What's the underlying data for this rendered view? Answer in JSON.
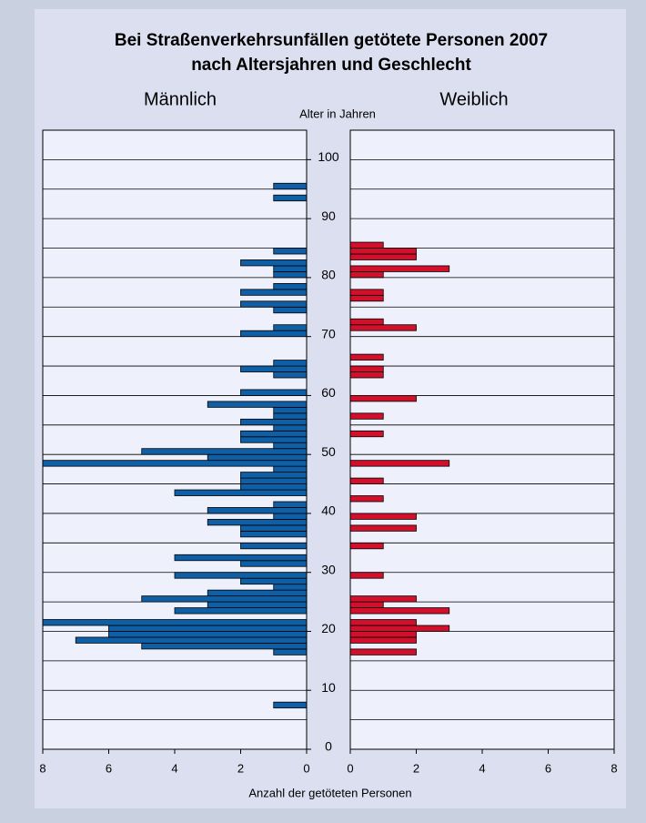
{
  "chart_data": {
    "type": "pyramid",
    "title": [
      "Bei Straßenverkehrsunfällen getötete Personen 2007",
      "nach Altersjahren und Geschlecht"
    ],
    "y_label": "Alter in Jahren",
    "x_label": "Anzahl der getöteten Personen",
    "x": [
      0,
      1,
      2,
      3,
      4,
      5,
      6,
      7,
      8,
      9,
      10,
      11,
      12,
      13,
      14,
      15,
      16,
      17,
      18,
      19,
      20,
      21,
      22,
      23,
      24,
      25,
      26,
      27,
      28,
      29,
      30,
      31,
      32,
      33,
      34,
      35,
      36,
      37,
      38,
      39,
      40,
      41,
      42,
      43,
      44,
      45,
      46,
      47,
      48,
      49,
      50,
      51,
      52,
      53,
      54,
      55,
      56,
      57,
      58,
      59,
      60,
      61,
      62,
      63,
      64,
      65,
      66,
      67,
      68,
      69,
      70,
      71,
      72,
      73,
      74,
      75,
      76,
      77,
      78,
      79,
      80,
      81,
      82,
      83,
      84,
      85,
      86,
      87,
      88,
      89,
      90,
      91,
      92,
      93,
      94,
      95,
      96,
      97,
      98,
      99,
      100,
      101,
      102,
      103,
      104
    ],
    "series": [
      {
        "name": "Männlich",
        "color": "#0f5fa6",
        "side": "left",
        "values": [
          0,
          0,
          0,
          0,
          0,
          0,
          0,
          1,
          0,
          0,
          0,
          0,
          0,
          0,
          0,
          0,
          1,
          5,
          7,
          6,
          6,
          8,
          0,
          4,
          3,
          5,
          3,
          1,
          2,
          4,
          0,
          2,
          4,
          0,
          2,
          0,
          2,
          2,
          3,
          1,
          3,
          1,
          0,
          4,
          2,
          2,
          2,
          1,
          8,
          3,
          5,
          1,
          2,
          2,
          1,
          2,
          1,
          1,
          3,
          0,
          2,
          0,
          0,
          1,
          2,
          1,
          0,
          0,
          0,
          0,
          2,
          1,
          0,
          0,
          1,
          2,
          0,
          2,
          1,
          0,
          1,
          1,
          2,
          0,
          1,
          0,
          0,
          0,
          0,
          0,
          0,
          0,
          0,
          1,
          0,
          1,
          0,
          0,
          0,
          0,
          0,
          0,
          0,
          0,
          0
        ]
      },
      {
        "name": "Weiblich",
        "color": "#d2102c",
        "side": "right",
        "values": [
          0,
          0,
          0,
          0,
          0,
          0,
          0,
          0,
          0,
          0,
          0,
          0,
          0,
          0,
          0,
          0,
          2,
          0,
          2,
          2,
          3,
          2,
          0,
          3,
          1,
          2,
          0,
          0,
          0,
          1,
          0,
          0,
          0,
          0,
          1,
          0,
          0,
          2,
          0,
          2,
          0,
          0,
          1,
          0,
          0,
          1,
          0,
          0,
          3,
          0,
          0,
          0,
          0,
          1,
          0,
          0,
          1,
          0,
          0,
          2,
          0,
          0,
          0,
          1,
          1,
          0,
          1,
          0,
          0,
          0,
          0,
          2,
          1,
          0,
          0,
          0,
          1,
          1,
          0,
          0,
          1,
          3,
          0,
          2,
          2,
          1,
          0,
          0,
          0,
          0,
          0,
          0,
          0,
          0,
          0,
          0,
          0,
          0,
          0,
          0,
          0,
          0,
          0,
          0,
          0
        ]
      }
    ],
    "ylim": [
      0,
      105
    ],
    "yticks": [
      0,
      10,
      20,
      30,
      40,
      50,
      60,
      70,
      80,
      90,
      100
    ],
    "ygrid": [
      5,
      10,
      15,
      20,
      25,
      30,
      35,
      40,
      45,
      50,
      55,
      60,
      65,
      70,
      75,
      80,
      85,
      90,
      95,
      100
    ],
    "xlim": [
      0,
      8
    ],
    "xticks": [
      0,
      2,
      4,
      6,
      8
    ]
  }
}
